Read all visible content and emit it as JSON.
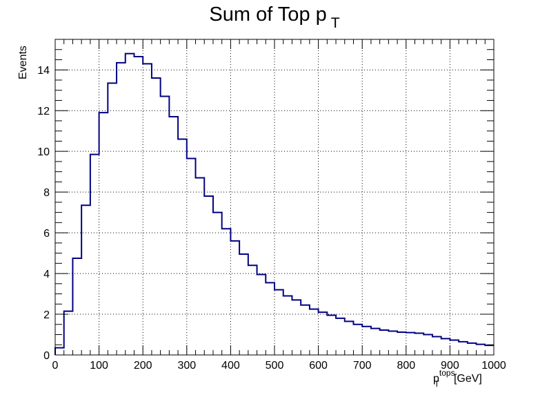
{
  "chart_data": {
    "type": "line",
    "title": "Sum of Top p",
    "title_subscript": "T",
    "xlabel": {
      "base": "p",
      "subscript": "T",
      "superscript": "tops",
      "unit": "[GeV]"
    },
    "ylabel": "Events",
    "xlim": [
      0,
      1000
    ],
    "ylim": [
      0,
      15.5
    ],
    "x_ticks": [
      0,
      100,
      200,
      300,
      400,
      500,
      600,
      700,
      800,
      900,
      1000
    ],
    "y_ticks": [
      0,
      2,
      4,
      6,
      8,
      10,
      12,
      14
    ],
    "grid": true,
    "legend": "none",
    "style": "step-histogram",
    "line_color": "#000080",
    "bin_width": 20,
    "series": [
      {
        "bin_edges_start": [
          0,
          20,
          40,
          60,
          80,
          100,
          120,
          140,
          160,
          180,
          200,
          220,
          240,
          260,
          280,
          300,
          320,
          340,
          360,
          380,
          400,
          420,
          440,
          460,
          480,
          500,
          520,
          540,
          560,
          580,
          600,
          620,
          640,
          660,
          680,
          700,
          720,
          740,
          760,
          780,
          800,
          820,
          840,
          860,
          880,
          900,
          920,
          940,
          960,
          980
        ],
        "values": [
          0.35,
          2.15,
          4.75,
          7.35,
          9.85,
          11.9,
          13.35,
          14.35,
          14.8,
          14.65,
          14.3,
          13.6,
          12.7,
          11.7,
          10.6,
          9.65,
          8.7,
          7.8,
          7.0,
          6.2,
          5.6,
          4.95,
          4.4,
          3.95,
          3.55,
          3.2,
          2.9,
          2.7,
          2.45,
          2.25,
          2.1,
          1.95,
          1.8,
          1.65,
          1.5,
          1.4,
          1.3,
          1.22,
          1.17,
          1.12,
          1.1,
          1.07,
          1.0,
          0.9,
          0.8,
          0.73,
          0.65,
          0.58,
          0.52,
          0.47
        ]
      }
    ]
  }
}
